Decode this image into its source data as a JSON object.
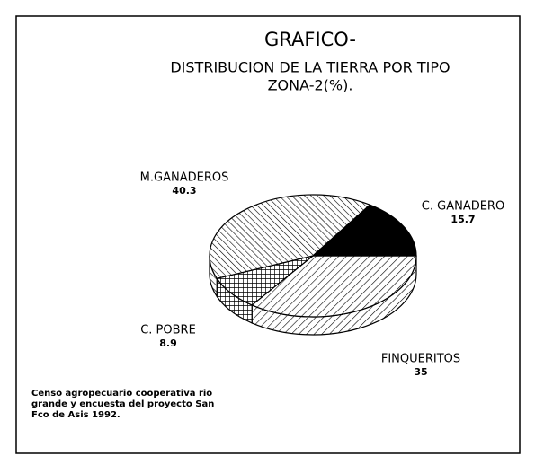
{
  "chart_data": {
    "type": "pie",
    "title": "GRAFICO-",
    "subtitle": [
      "DISTRIBUCION DE LA TIERRA POR TIPO",
      "ZONA-2(%)."
    ],
    "categories": [
      "FINQUERITOS",
      "C. POBRE",
      "M.GANADEROS",
      "C. GANADERO"
    ],
    "values": [
      35,
      8.9,
      40.3,
      15.7
    ],
    "source": [
      "Censo agropecuario cooperativa rio",
      "grande y encuesta del proyecto San",
      "Fco de Asis 1992."
    ]
  }
}
